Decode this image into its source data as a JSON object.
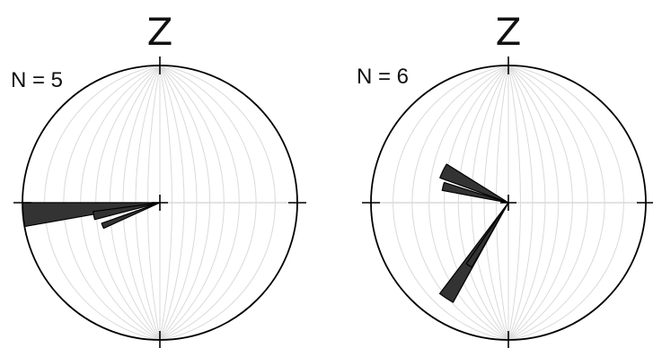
{
  "chart_data": [
    {
      "type": "rose",
      "projection": "stereonet",
      "title": "Z",
      "annotation": "N = 5",
      "grid": true,
      "color": "#333333",
      "petals": [
        {
          "azimuth_deg": 265,
          "width_deg": 10,
          "radius": 1.0
        },
        {
          "azimuth_deg": 259,
          "width_deg": 7,
          "radius": 0.49
        },
        {
          "azimuth_deg": 248,
          "width_deg": 5,
          "radius": 0.45
        }
      ]
    },
    {
      "type": "rose",
      "projection": "stereonet",
      "title": "Z",
      "annotation": "N = 6",
      "grid": true,
      "color": "#333333",
      "petals": [
        {
          "azimuth_deg": 296,
          "width_deg": 12,
          "radius": 0.53
        },
        {
          "azimuth_deg": 284,
          "width_deg": 7,
          "radius": 0.49
        },
        {
          "azimuth_deg": 213,
          "width_deg": 8,
          "radius": 0.83
        },
        {
          "azimuth_deg": 212,
          "width_deg": 5,
          "radius": 0.54
        }
      ]
    }
  ]
}
